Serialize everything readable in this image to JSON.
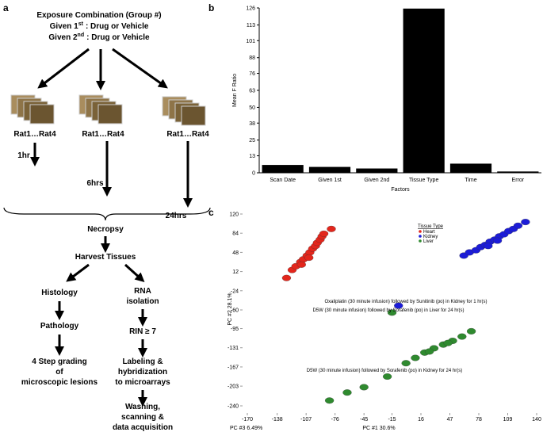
{
  "panel_labels": [
    "a",
    "b",
    "c"
  ],
  "flowchart": {
    "title": "Exposure Combination (Group #)",
    "given_1": {
      "start": "Given 1",
      "sup": "st",
      "end": ": Drug or Vehicle"
    },
    "given_2": {
      "start": "Given 2",
      "sup": "nd",
      "end": ": Drug or Vehicle"
    },
    "groups": [
      {
        "rats": "Rat1…Rat4",
        "time": "1hr"
      },
      {
        "rats": "Rat1…Rat4",
        "time": "6hrs"
      },
      {
        "rats": "Rat1…Rat4",
        "time": "24hrs"
      }
    ],
    "necropsy": "Necropsy",
    "harvest": "Harvest Tissues",
    "histology": "Histology",
    "pathology": "Pathology",
    "grading": [
      "4 Step grading",
      "of",
      "microscopic lesions"
    ],
    "rna": [
      "RNA",
      "isolation"
    ],
    "rin": "RIN ≥ 7",
    "labeling": [
      "Labeling &",
      "hybridization",
      "to microarrays"
    ],
    "washing": [
      "Washing,",
      "scanning &",
      "data acquisition"
    ]
  },
  "chart_data": [
    {
      "type": "bar",
      "ylabel": "Mean F Ratio",
      "xlabel": "Factors",
      "categories": [
        "Scan Date",
        "Given 1st",
        "Given 2nd",
        "Tissue Type",
        "Time",
        "Error"
      ],
      "values": [
        6,
        4.5,
        3.3,
        125.5,
        7,
        1
      ],
      "color": "#000000",
      "ylim": [
        0,
        126
      ],
      "yticks": [
        0,
        13,
        25,
        38,
        50,
        63,
        76,
        88,
        101,
        113,
        126
      ]
    },
    {
      "type": "scatter",
      "xlabel": "PC #1 30.6%",
      "ylabel": "PC #2 28.1%",
      "zlabel": "PC #3 6.49%",
      "legend_title": "Tissue Type",
      "xlim": [
        -170,
        140
      ],
      "ylim": [
        -240,
        120
      ],
      "xticks": [
        -170,
        -138,
        -107,
        -76,
        -45,
        -15,
        16,
        47,
        78,
        109,
        140
      ],
      "yticks": [
        120,
        84,
        48,
        12,
        -24,
        -60,
        -95,
        -131,
        -167,
        -203,
        -240
      ],
      "series": [
        {
          "name": "Heart",
          "color": "#e3261c",
          "x": [
            -128,
            -122,
            -118,
            -113,
            -110,
            -106,
            -103,
            -100,
            -97,
            -95,
            -92,
            -90,
            -88,
            -80,
            -112,
            -104
          ],
          "y": [
            0,
            15,
            22,
            30,
            35,
            42,
            48,
            55,
            60,
            66,
            72,
            78,
            83,
            92,
            25,
            38
          ]
        },
        {
          "name": "Kidney",
          "color": "#1c1cd8",
          "x": [
            62,
            68,
            75,
            80,
            85,
            90,
            95,
            100,
            105,
            110,
            115,
            120,
            128,
            88,
            98,
            -8
          ],
          "y": [
            42,
            48,
            52,
            58,
            62,
            68,
            72,
            78,
            82,
            88,
            92,
            98,
            105,
            60,
            70,
            -52
          ]
        },
        {
          "name": "Liver",
          "color": "#2f8a2f",
          "x": [
            -82,
            -63,
            -45,
            -20,
            0,
            10,
            20,
            30,
            40,
            50,
            60,
            70,
            45,
            25,
            -15
          ],
          "y": [
            -230,
            -215,
            -205,
            -185,
            -160,
            -150,
            -140,
            -132,
            -125,
            -118,
            -110,
            -100,
            -122,
            -138,
            -65
          ]
        }
      ],
      "annotations": [
        "Oxaliplatin (30 minute infusion) followed by Sunitinib (po) in Kidney for 1 hr(s)",
        "D5W  (30 minute infusion) followed by Sorafenib (po) in Liver for 24 hr(s)",
        "D5W  (30 minute infusion) followed by Sorafenib (po) in Kidney for 24 hr(s)"
      ]
    }
  ]
}
